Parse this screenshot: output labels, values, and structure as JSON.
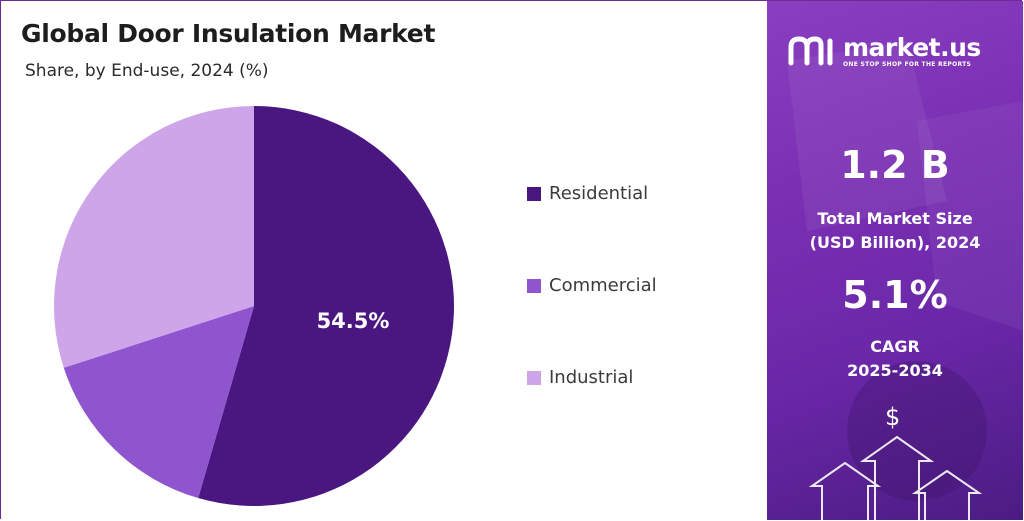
{
  "chart_data": {
    "type": "pie",
    "title": "Global Door Insulation Market",
    "subtitle": "Share, by End-use, 2024 (%)",
    "categories": [
      "Residential",
      "Commercial",
      "Industrial"
    ],
    "values": [
      54.5,
      15.5,
      30.0
    ],
    "colors": [
      "#4a1680",
      "#8e55cf",
      "#cfa5ea"
    ],
    "data_labels": [
      "54.5%",
      "",
      ""
    ],
    "legend_position": "right"
  },
  "brand": {
    "name": "market.us",
    "tagline": "ONE STOP SHOP FOR THE REPORTS",
    "icon": "market-us-logo"
  },
  "stats": {
    "market_size_value": "1.2 B",
    "market_size_label_1": "Total Market Size",
    "market_size_label_2": "(USD Billion), 2024",
    "cagr_value": "5.1%",
    "cagr_label_1": "CAGR",
    "cagr_label_2": "2025-2034"
  },
  "decor": {
    "dollar_symbol": "$",
    "arrows": "up-arrow-icon"
  },
  "colors": {
    "panel": "#7a2fb3",
    "border": "#6a2c91"
  }
}
